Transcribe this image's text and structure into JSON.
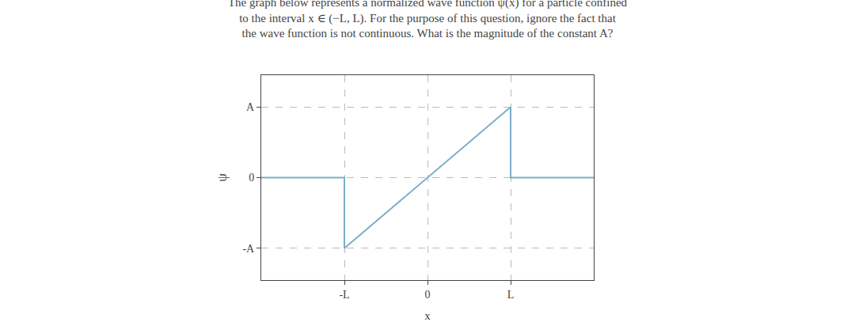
{
  "chart_data": {
    "type": "line",
    "title": "The graph below represents a normalized wave function ψ(x) for a particle confined\nto the interval x ∈ (−L, L). For the purpose of this question, ignore the fact that\nthe wave function is not continuous. What is the magnitude of the constant A?",
    "xlabel": "x",
    "ylabel": "ψ",
    "x": [
      -2.0,
      -1.0,
      -1.0,
      1.0,
      1.0,
      2.0
    ],
    "values": [
      0,
      0,
      -1,
      1,
      0,
      0
    ],
    "color": "#7aaec8",
    "xlim": [
      -2.0,
      2.0
    ],
    "ylim": [
      -1.45,
      1.45
    ],
    "xticks": [
      {
        "value": -1,
        "label": "-L"
      },
      0,
      {
        "value": 1,
        "label": "L"
      }
    ],
    "yticks": [
      {
        "value": -1,
        "label": "-A"
      },
      0,
      {
        "value": 1,
        "label": "A"
      }
    ],
    "grid": true
  }
}
